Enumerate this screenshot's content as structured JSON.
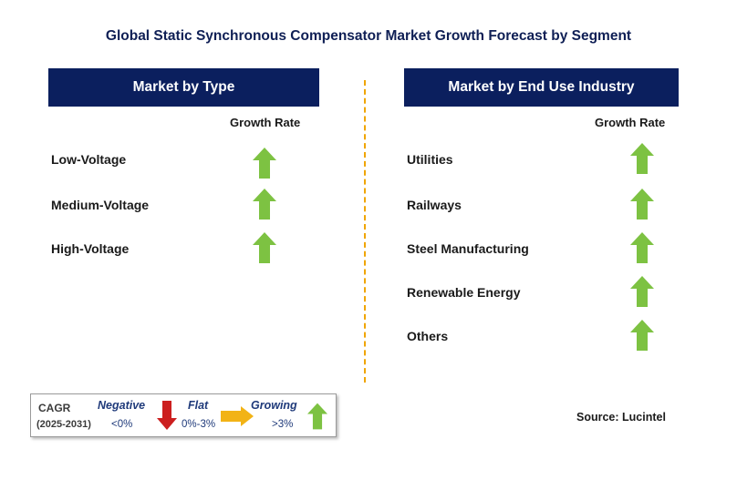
{
  "title": "Global Static Synchronous Compensator Market Growth Forecast by Segment",
  "left_panel": {
    "header": "Market by Type",
    "column_header": "Growth Rate",
    "rows": [
      {
        "label": "Low-Voltage",
        "trend": "growing"
      },
      {
        "label": "Medium-Voltage",
        "trend": "growing"
      },
      {
        "label": "High-Voltage",
        "trend": "growing"
      }
    ]
  },
  "right_panel": {
    "header": "Market by End Use Industry",
    "column_header": "Growth Rate",
    "rows": [
      {
        "label": "Utilities",
        "trend": "growing"
      },
      {
        "label": "Railways",
        "trend": "growing"
      },
      {
        "label": "Steel Manufacturing",
        "trend": "growing"
      },
      {
        "label": "Renewable Energy",
        "trend": "growing"
      },
      {
        "label": "Others",
        "trend": "growing"
      }
    ]
  },
  "legend": {
    "cagr_label": "CAGR",
    "period": "(2025-2031)",
    "negative_label": "Negative",
    "negative_value": "<0%",
    "flat_label": "Flat",
    "flat_value": "0%-3%",
    "growing_label": "Growing",
    "growing_value": ">3%"
  },
  "source": "Source: Lucintel",
  "colors": {
    "header_bg": "#0b1f5e",
    "title": "#0f1f55",
    "growing_arrow": "#7dc242",
    "negative_arrow": "#cc1f1f",
    "flat_arrow": "#f2b316",
    "divider": "#f0a500"
  },
  "icons": {
    "growing": "up-arrow-icon",
    "negative": "down-arrow-icon",
    "flat": "right-arrow-icon"
  }
}
